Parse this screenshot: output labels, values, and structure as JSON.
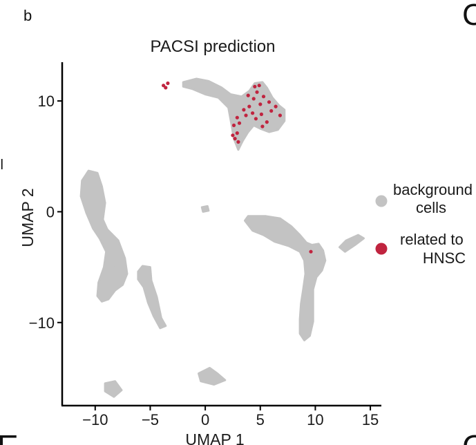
{
  "panel_fragments": {
    "left_top": "b",
    "left_mid": "ll",
    "right_top": "C",
    "bottom_left": "E",
    "bottom_right": "G"
  },
  "colors": {
    "background_cells": "#c3c3c3",
    "related_cells": "#c0243f",
    "axis": "#000000",
    "text": "#1a1a1a"
  },
  "chart_data": {
    "type": "scatter",
    "title": "PACSI prediction",
    "xlabel": "UMAP 1",
    "ylabel": "UMAP 2",
    "xlim": [
      -13,
      16
    ],
    "ylim": [
      -17.5,
      13.5
    ],
    "xticks": [
      -10,
      -5,
      0,
      5,
      10,
      15
    ],
    "yticks": [
      -10,
      0,
      10
    ],
    "xtick_labels": [
      "−10",
      "−5",
      "0",
      "5",
      "10",
      "15"
    ],
    "ytick_labels": [
      "−10",
      "0",
      "10"
    ],
    "grid": false,
    "legend_position": "right",
    "legend": [
      {
        "label_lines": [
          "background",
          "cells"
        ],
        "color": "#c3c3c3"
      },
      {
        "label_lines": [
          "related to",
          "HNSC"
        ],
        "color": "#c0243f"
      }
    ],
    "clusters": [
      {
        "series": "background cells",
        "shape": "polygon",
        "points": [
          [
            -2,
            11.7
          ],
          [
            -0.8,
            12.0
          ],
          [
            0.3,
            11.8
          ],
          [
            1.5,
            11.2
          ],
          [
            2.3,
            10.6
          ],
          [
            3.3,
            10.4
          ],
          [
            4.0,
            10.9
          ],
          [
            4.5,
            11.6
          ],
          [
            5.2,
            11.7
          ],
          [
            5.6,
            11.2
          ],
          [
            6.1,
            10.3
          ],
          [
            6.7,
            9.6
          ],
          [
            7.2,
            9.2
          ],
          [
            7.2,
            8.2
          ],
          [
            6.6,
            7.4
          ],
          [
            5.8,
            7.2
          ],
          [
            5.0,
            7.5
          ],
          [
            4.4,
            7.8
          ],
          [
            3.9,
            7.2
          ],
          [
            3.4,
            6.4
          ],
          [
            3.0,
            5.6
          ],
          [
            2.6,
            6.6
          ],
          [
            2.4,
            7.8
          ],
          [
            2.1,
            9.4
          ],
          [
            1.2,
            10.3
          ],
          [
            0.0,
            10.6
          ],
          [
            -1.2,
            11.1
          ],
          [
            -2.0,
            11.3
          ]
        ]
      },
      {
        "series": "background cells",
        "shape": "polygon",
        "points": [
          [
            -11.2,
            2.8
          ],
          [
            -10.6,
            3.7
          ],
          [
            -9.8,
            3.5
          ],
          [
            -9.4,
            2.3
          ],
          [
            -9.1,
            0.8
          ],
          [
            -9.3,
            -0.7
          ],
          [
            -8.9,
            -1.6
          ],
          [
            -7.9,
            -2.6
          ],
          [
            -7.3,
            -4.2
          ],
          [
            -7.1,
            -5.6
          ],
          [
            -7.5,
            -6.6
          ],
          [
            -8.2,
            -7.1
          ],
          [
            -8.8,
            -7.9
          ],
          [
            -9.4,
            -8.1
          ],
          [
            -9.8,
            -7.6
          ],
          [
            -9.7,
            -6.4
          ],
          [
            -9.2,
            -5.0
          ],
          [
            -9.0,
            -3.6
          ],
          [
            -9.6,
            -2.4
          ],
          [
            -10.2,
            -1.5
          ],
          [
            -10.8,
            -0.1
          ],
          [
            -11.3,
            1.4
          ]
        ]
      },
      {
        "series": "background cells",
        "shape": "polygon",
        "points": [
          [
            -5.7,
            -4.9
          ],
          [
            -5.0,
            -5.0
          ],
          [
            -4.9,
            -6.2
          ],
          [
            -4.4,
            -7.7
          ],
          [
            -4.0,
            -9.6
          ],
          [
            -3.6,
            -10.3
          ],
          [
            -4.1,
            -10.5
          ],
          [
            -4.7,
            -9.4
          ],
          [
            -5.2,
            -8.2
          ],
          [
            -5.6,
            -6.8
          ],
          [
            -6.1,
            -6.1
          ],
          [
            -6.1,
            -5.4
          ]
        ]
      },
      {
        "series": "background cells",
        "shape": "polygon",
        "points": [
          [
            3.6,
            -0.8
          ],
          [
            3.9,
            -0.4
          ],
          [
            4.6,
            -0.4
          ],
          [
            5.5,
            -0.4
          ],
          [
            6.8,
            -0.6
          ],
          [
            7.8,
            -1.3
          ],
          [
            8.6,
            -2.1
          ],
          [
            9.2,
            -2.8
          ],
          [
            9.7,
            -3.0
          ],
          [
            10.3,
            -2.9
          ],
          [
            10.7,
            -3.5
          ],
          [
            10.9,
            -4.4
          ],
          [
            10.6,
            -5.3
          ],
          [
            10.1,
            -5.9
          ],
          [
            9.8,
            -7.0
          ],
          [
            9.8,
            -8.4
          ],
          [
            9.8,
            -9.9
          ],
          [
            9.5,
            -11.2
          ],
          [
            9.0,
            -11.6
          ],
          [
            8.6,
            -11.0
          ],
          [
            8.6,
            -9.7
          ],
          [
            8.7,
            -8.3
          ],
          [
            8.9,
            -7.0
          ],
          [
            9.1,
            -5.6
          ],
          [
            9.0,
            -4.4
          ],
          [
            8.6,
            -3.6
          ],
          [
            7.6,
            -3.1
          ],
          [
            6.3,
            -2.7
          ],
          [
            5.3,
            -2.1
          ],
          [
            4.3,
            -1.7
          ]
        ]
      },
      {
        "series": "background cells",
        "shape": "polygon",
        "points": [
          [
            12.2,
            -3.2
          ],
          [
            12.8,
            -2.6
          ],
          [
            13.9,
            -2.1
          ],
          [
            14.4,
            -2.4
          ],
          [
            13.6,
            -3.0
          ],
          [
            12.7,
            -3.6
          ]
        ]
      },
      {
        "series": "background cells",
        "shape": "polygon",
        "points": [
          [
            -0.6,
            -14.6
          ],
          [
            0.4,
            -14.1
          ],
          [
            1.1,
            -14.6
          ],
          [
            1.8,
            -15.2
          ],
          [
            0.8,
            -15.6
          ],
          [
            -0.4,
            -15.3
          ]
        ]
      },
      {
        "series": "background cells",
        "shape": "polygon",
        "points": [
          [
            -9.1,
            -15.5
          ],
          [
            -8.2,
            -15.3
          ],
          [
            -7.6,
            -16.1
          ],
          [
            -8.3,
            -16.7
          ],
          [
            -9.1,
            -16.2
          ]
        ]
      },
      {
        "series": "background cells",
        "shape": "polygon",
        "points": [
          [
            -0.3,
            0.4
          ],
          [
            0.2,
            0.5
          ],
          [
            0.3,
            0.1
          ],
          [
            -0.2,
            0.0
          ]
        ]
      },
      {
        "series": "background cells",
        "shape": "polygon",
        "points": [
          [
            -8.2,
            -4.7
          ],
          [
            -7.7,
            -4.6
          ],
          [
            -7.6,
            -5.2
          ],
          [
            -8.1,
            -5.3
          ]
        ]
      }
    ],
    "related_points": [
      [
        -3.8,
        11.4
      ],
      [
        -3.6,
        11.2
      ],
      [
        -3.4,
        11.6
      ],
      [
        4.5,
        11.3
      ],
      [
        4.7,
        10.8
      ],
      [
        4.4,
        10.2
      ],
      [
        5.3,
        10.4
      ],
      [
        5.0,
        9.7
      ],
      [
        4.0,
        9.5
      ],
      [
        4.3,
        8.9
      ],
      [
        3.7,
        8.7
      ],
      [
        3.5,
        9.2
      ],
      [
        2.9,
        8.5
      ],
      [
        3.1,
        8.0
      ],
      [
        2.6,
        7.8
      ],
      [
        2.9,
        7.1
      ],
      [
        2.7,
        6.6
      ],
      [
        3.0,
        6.3
      ],
      [
        2.5,
        6.9
      ],
      [
        4.6,
        8.4
      ],
      [
        5.1,
        8.8
      ],
      [
        5.6,
        8.1
      ],
      [
        5.2,
        7.7
      ],
      [
        6.0,
        9.1
      ],
      [
        6.4,
        9.5
      ],
      [
        6.8,
        8.7
      ],
      [
        5.8,
        9.9
      ],
      [
        4.9,
        11.4
      ],
      [
        3.9,
        10.5
      ],
      [
        9.6,
        -3.6
      ]
    ]
  }
}
